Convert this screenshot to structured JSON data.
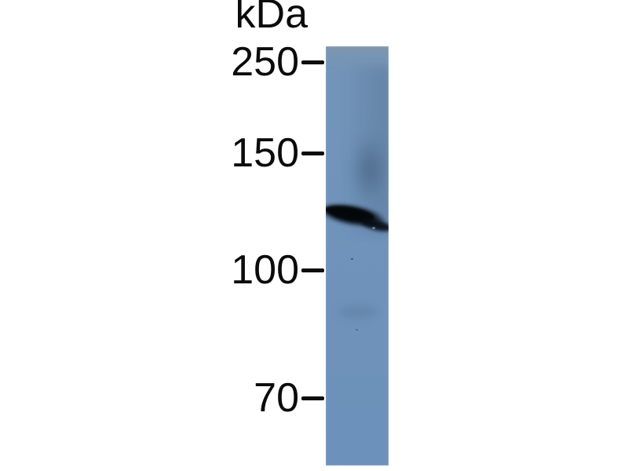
{
  "figure": {
    "kind": "western-blot",
    "unit_label": "kDa",
    "markers": [
      {
        "label": "250"
      },
      {
        "label": "150"
      },
      {
        "label": "100"
      },
      {
        "label": "70"
      }
    ],
    "lane": {
      "count": 1,
      "band": {
        "count": 1,
        "location": "between 150 and 100 kDa markers"
      }
    },
    "colors": {
      "background": "#ffffff",
      "lane": "#7093ba",
      "band": "#0a1016",
      "text": "#0b0b0b"
    }
  }
}
